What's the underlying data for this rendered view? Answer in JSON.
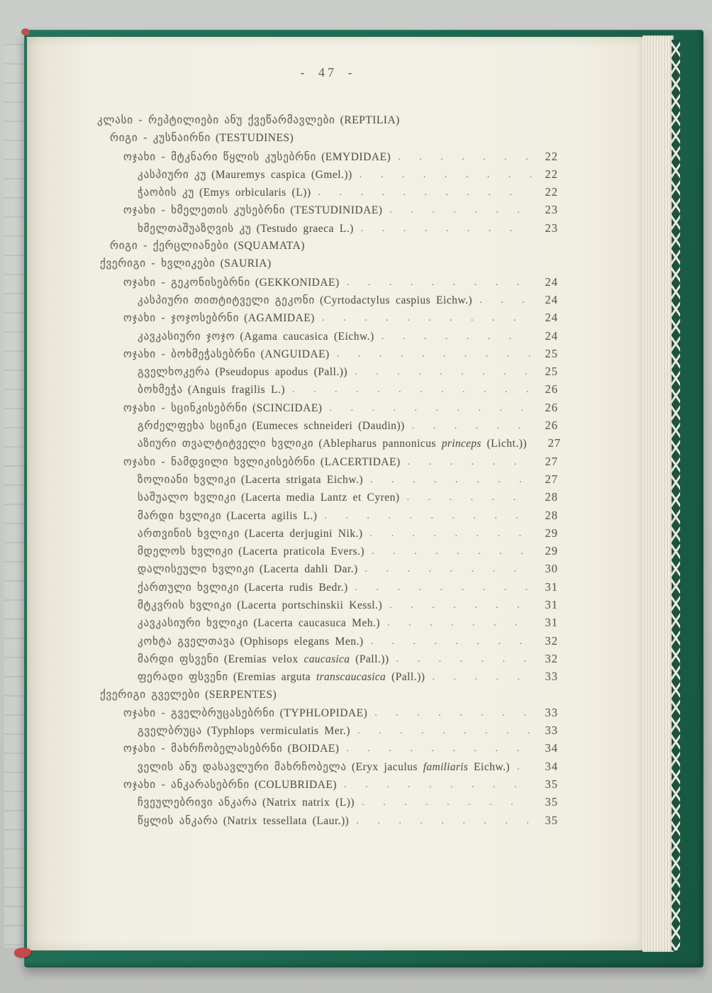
{
  "book": {
    "page_label": "- 47 -",
    "toc": [
      {
        "level": 0,
        "georgian": "კლასი - რეპტილიები ანუ ქვეწარმავლები",
        "latin": [
          {
            "text": "(REPTILIA)",
            "italic": false
          }
        ],
        "page": ""
      },
      {
        "level": 1,
        "georgian": "რიგი - კუსნაირნი",
        "latin": [
          {
            "text": "(TESTUDINES)",
            "italic": false
          }
        ],
        "page": ""
      },
      {
        "level": 2,
        "georgian": "ოჯახი - მტკნარი წყლის კუსებრნი",
        "latin": [
          {
            "text": "(EMYDIDAE)",
            "italic": false
          }
        ],
        "page": "22"
      },
      {
        "level": 3,
        "georgian": "კასპიური კუ",
        "latin": [
          {
            "text": "(Mauremys caspica (Gmel.))",
            "italic": false
          }
        ],
        "page": "22"
      },
      {
        "level": 3,
        "georgian": "ჭაობის კუ",
        "latin": [
          {
            "text": "(Emys orbicularis (L))",
            "italic": false
          }
        ],
        "page": "22"
      },
      {
        "level": 2,
        "georgian": "ოჯახი - ხმელეთის კუსებრნი",
        "latin": [
          {
            "text": "(TESTUDINIDAE)",
            "italic": false
          }
        ],
        "page": "23"
      },
      {
        "level": 3,
        "georgian": "ხმელთაშუაზღვის კუ",
        "latin": [
          {
            "text": "(Testudo graeca L.)",
            "italic": false
          }
        ],
        "page": "23"
      },
      {
        "level": 1,
        "georgian": "რიგი - ქერცლიანები",
        "latin": [
          {
            "text": "(SQUAMATA)",
            "italic": false
          }
        ],
        "page": ""
      },
      {
        "level": 0.5,
        "georgian": "ქვერიგი - ხვლიკები",
        "latin": [
          {
            "text": "(SAURIA)",
            "italic": false
          }
        ],
        "page": ""
      },
      {
        "level": 2,
        "georgian": "ოჯახი - გეკონისებრნი",
        "latin": [
          {
            "text": "(GEKKONIDAE)",
            "italic": false
          }
        ],
        "page": "24"
      },
      {
        "level": 3,
        "georgian": "კასპიური თითტიტველი გეკონი",
        "latin": [
          {
            "text": "(Cyrtodactylus caspius Eichw.)",
            "italic": false
          }
        ],
        "page": "24"
      },
      {
        "level": 2,
        "georgian": "ოჯახი - ჯოჯოსებრნი",
        "latin": [
          {
            "text": "(AGAMIDAE)",
            "italic": false
          }
        ],
        "page": "24"
      },
      {
        "level": 3,
        "georgian": "კავკასიური ჯოჯო",
        "latin": [
          {
            "text": "(Agama caucasica (Eichw.)",
            "italic": false
          }
        ],
        "page": "24"
      },
      {
        "level": 2,
        "georgian": "ოჯახი - ბოხმეჭასებრნი",
        "latin": [
          {
            "text": "(ANGUIDAE)",
            "italic": false
          }
        ],
        "page": "25"
      },
      {
        "level": 3,
        "georgian": "გველხოკერა",
        "latin": [
          {
            "text": "(Pseudopus apodus (Pall.))",
            "italic": false
          }
        ],
        "page": "25"
      },
      {
        "level": 3,
        "georgian": "ბოხმეჭა",
        "latin": [
          {
            "text": "(Anguis fragilis L.)",
            "italic": false
          }
        ],
        "page": "26"
      },
      {
        "level": 2,
        "georgian": "ოჯახი - სცინკისებრნი",
        "latin": [
          {
            "text": "(SCINCIDAE)",
            "italic": false
          }
        ],
        "page": "26"
      },
      {
        "level": 3,
        "georgian": "გრძელფეხა სცინკი",
        "latin": [
          {
            "text": "(Eumeces schneideri (Daudin))",
            "italic": false
          }
        ],
        "page": "26"
      },
      {
        "level": 3,
        "georgian": "აზიური თვალტიტველი ხვლიკი",
        "latin": [
          {
            "text": "(Ablepharus pannonicus ",
            "italic": false
          },
          {
            "text": "princeps",
            "italic": true
          },
          {
            "text": " (Licht.))",
            "italic": false
          }
        ],
        "page": "27"
      },
      {
        "level": 2,
        "georgian": "ოჯახი - ნამდვილი ხვლიკისებრნი",
        "latin": [
          {
            "text": "(LACERTIDAE)",
            "italic": false
          }
        ],
        "page": "27"
      },
      {
        "level": 3,
        "georgian": "ზოლიანი ხვლიკი",
        "latin": [
          {
            "text": "(Lacerta strigata Eichw.)",
            "italic": false
          }
        ],
        "page": "27"
      },
      {
        "level": 3,
        "georgian": "საშუალო ხვლიკი",
        "latin": [
          {
            "text": "(Lacerta media Lantz et Cyren)",
            "italic": false
          }
        ],
        "page": "28"
      },
      {
        "level": 3,
        "georgian": "მარდი ხვლიკი",
        "latin": [
          {
            "text": "(Lacerta agilis L.)",
            "italic": false
          }
        ],
        "page": "28"
      },
      {
        "level": 3,
        "georgian": "ართვინის ხვლიკი",
        "latin": [
          {
            "text": "(Lacerta derjugini Nik.)",
            "italic": false
          }
        ],
        "page": "29"
      },
      {
        "level": 3,
        "georgian": "მდელოს ხვლიკი",
        "latin": [
          {
            "text": "(Lacerta praticola Evers.)",
            "italic": false
          }
        ],
        "page": "29"
      },
      {
        "level": 3,
        "georgian": "დალისეული ხვლიკი",
        "latin": [
          {
            "text": "(Lacerta dahli Dar.)",
            "italic": false
          }
        ],
        "page": "30"
      },
      {
        "level": 3,
        "georgian": "ქართული ხვლიკი",
        "latin": [
          {
            "text": "(Lacerta rudis Bedr.)",
            "italic": false
          }
        ],
        "page": "31"
      },
      {
        "level": 3,
        "georgian": "მტკვრის ხვლიკი",
        "latin": [
          {
            "text": "(Lacerta portschinskii Kessl.)",
            "italic": false
          }
        ],
        "page": "31"
      },
      {
        "level": 3,
        "georgian": "კავკასიური ხვლიკი",
        "latin": [
          {
            "text": "(Lacerta caucasuca Meh.)",
            "italic": false
          }
        ],
        "page": "31"
      },
      {
        "level": 3,
        "georgian": "კოხტა გველთავა",
        "latin": [
          {
            "text": "(Ophisops elegans Men.)",
            "italic": false
          }
        ],
        "page": "32"
      },
      {
        "level": 3,
        "georgian": "მარდი ფსვენი",
        "latin": [
          {
            "text": "(Eremias velox ",
            "italic": false
          },
          {
            "text": "caucasica",
            "italic": true
          },
          {
            "text": " (Pall.))",
            "italic": false
          }
        ],
        "page": "32"
      },
      {
        "level": 3,
        "georgian": "ფერადი ფსვენი",
        "latin": [
          {
            "text": "(Eremias arguta ",
            "italic": false
          },
          {
            "text": "transcaucasica",
            "italic": true
          },
          {
            "text": " (Pall.))",
            "italic": false
          }
        ],
        "page": "33"
      },
      {
        "level": 0.5,
        "georgian": "ქვერიგი გველები",
        "latin": [
          {
            "text": "(SERPENTES)",
            "italic": false
          }
        ],
        "page": ""
      },
      {
        "level": 2,
        "georgian": "ოჯახი - გველბრუცასებრნი",
        "latin": [
          {
            "text": "(TYPHLOPIDAE)",
            "italic": false
          }
        ],
        "page": "33"
      },
      {
        "level": 3,
        "georgian": "გველბრუცა",
        "latin": [
          {
            "text": "(Typhlops vermiculatis Mer.)",
            "italic": false
          }
        ],
        "page": "33"
      },
      {
        "level": 2,
        "georgian": "ოჯახი - მახრჩობელასებრნი",
        "latin": [
          {
            "text": "(BOIDAE)",
            "italic": false
          }
        ],
        "page": "34"
      },
      {
        "level": 3,
        "georgian": "ველის ანუ დასავლური მახრჩობელა",
        "latin": [
          {
            "text": "(Eryx jaculus ",
            "italic": false
          },
          {
            "text": "familiaris",
            "italic": true
          },
          {
            "text": " Eichw.)",
            "italic": false
          }
        ],
        "page": "34"
      },
      {
        "level": 2,
        "georgian": "ოჯახი - ანკარასებრნი",
        "latin": [
          {
            "text": "(COLUBRIDAE)",
            "italic": false
          }
        ],
        "page": "35"
      },
      {
        "level": 3,
        "georgian": "ჩვეულებრივი ანკარა",
        "latin": [
          {
            "text": "(Natrix natrix (L))",
            "italic": false
          }
        ],
        "page": "35"
      },
      {
        "level": 3,
        "georgian": "წყლის ანკარა",
        "latin": [
          {
            "text": "(Natrix tessellata (Laur.))",
            "italic": false
          }
        ],
        "page": "35"
      }
    ]
  },
  "colors": {
    "cover_green": "#1e6a52",
    "page_cream": "#f1eee3",
    "background_gray": "#c6c8c5",
    "ink_gray": "#5a5b53",
    "bookmark_red": "#c2494c"
  }
}
